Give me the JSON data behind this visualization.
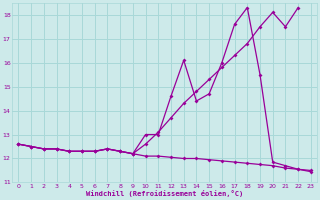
{
  "xlabel": "Windchill (Refroidissement éolien,°C)",
  "bg_color": "#cdeaea",
  "grid_color": "#a8d8d8",
  "line_color": "#990099",
  "xlim": [
    -0.5,
    23.5
  ],
  "ylim": [
    11,
    18.5
  ],
  "xticks": [
    0,
    1,
    2,
    3,
    4,
    5,
    6,
    7,
    8,
    9,
    10,
    11,
    12,
    13,
    14,
    15,
    16,
    17,
    18,
    19,
    20,
    21,
    22,
    23
  ],
  "yticks": [
    11,
    12,
    13,
    14,
    15,
    16,
    17,
    18
  ],
  "line1_x": [
    0,
    1,
    2,
    3,
    4,
    5,
    6,
    7,
    8,
    9,
    10,
    11,
    12,
    13,
    14,
    15,
    16,
    17,
    18,
    19,
    20,
    21,
    22,
    23
  ],
  "line1_y": [
    12.6,
    12.5,
    12.4,
    12.4,
    12.3,
    12.3,
    12.3,
    12.4,
    12.3,
    12.2,
    12.1,
    12.1,
    12.05,
    12.0,
    12.0,
    11.95,
    11.9,
    11.85,
    11.8,
    11.75,
    11.7,
    11.6,
    11.55,
    11.5
  ],
  "line2_x": [
    0,
    1,
    2,
    3,
    4,
    5,
    6,
    7,
    8,
    9,
    10,
    11,
    12,
    13,
    14,
    15,
    16,
    17,
    18,
    19,
    20,
    21,
    22,
    23
  ],
  "line2_y": [
    12.6,
    12.5,
    12.4,
    12.4,
    12.3,
    12.3,
    12.3,
    12.4,
    12.3,
    12.2,
    13.0,
    13.0,
    14.6,
    16.1,
    14.4,
    14.7,
    16.0,
    17.6,
    18.3,
    15.5,
    11.85,
    11.7,
    11.55,
    11.45
  ],
  "line3_x": [
    0,
    1,
    2,
    3,
    4,
    5,
    6,
    7,
    8,
    9,
    10,
    11,
    12,
    13,
    14,
    15,
    16,
    17,
    18,
    19,
    20,
    21,
    22
  ],
  "line3_y": [
    12.6,
    12.5,
    12.4,
    12.4,
    12.3,
    12.3,
    12.3,
    12.4,
    12.3,
    12.2,
    12.6,
    13.1,
    13.7,
    14.3,
    14.8,
    15.3,
    15.8,
    16.3,
    16.8,
    17.5,
    18.1,
    17.5,
    18.3
  ]
}
